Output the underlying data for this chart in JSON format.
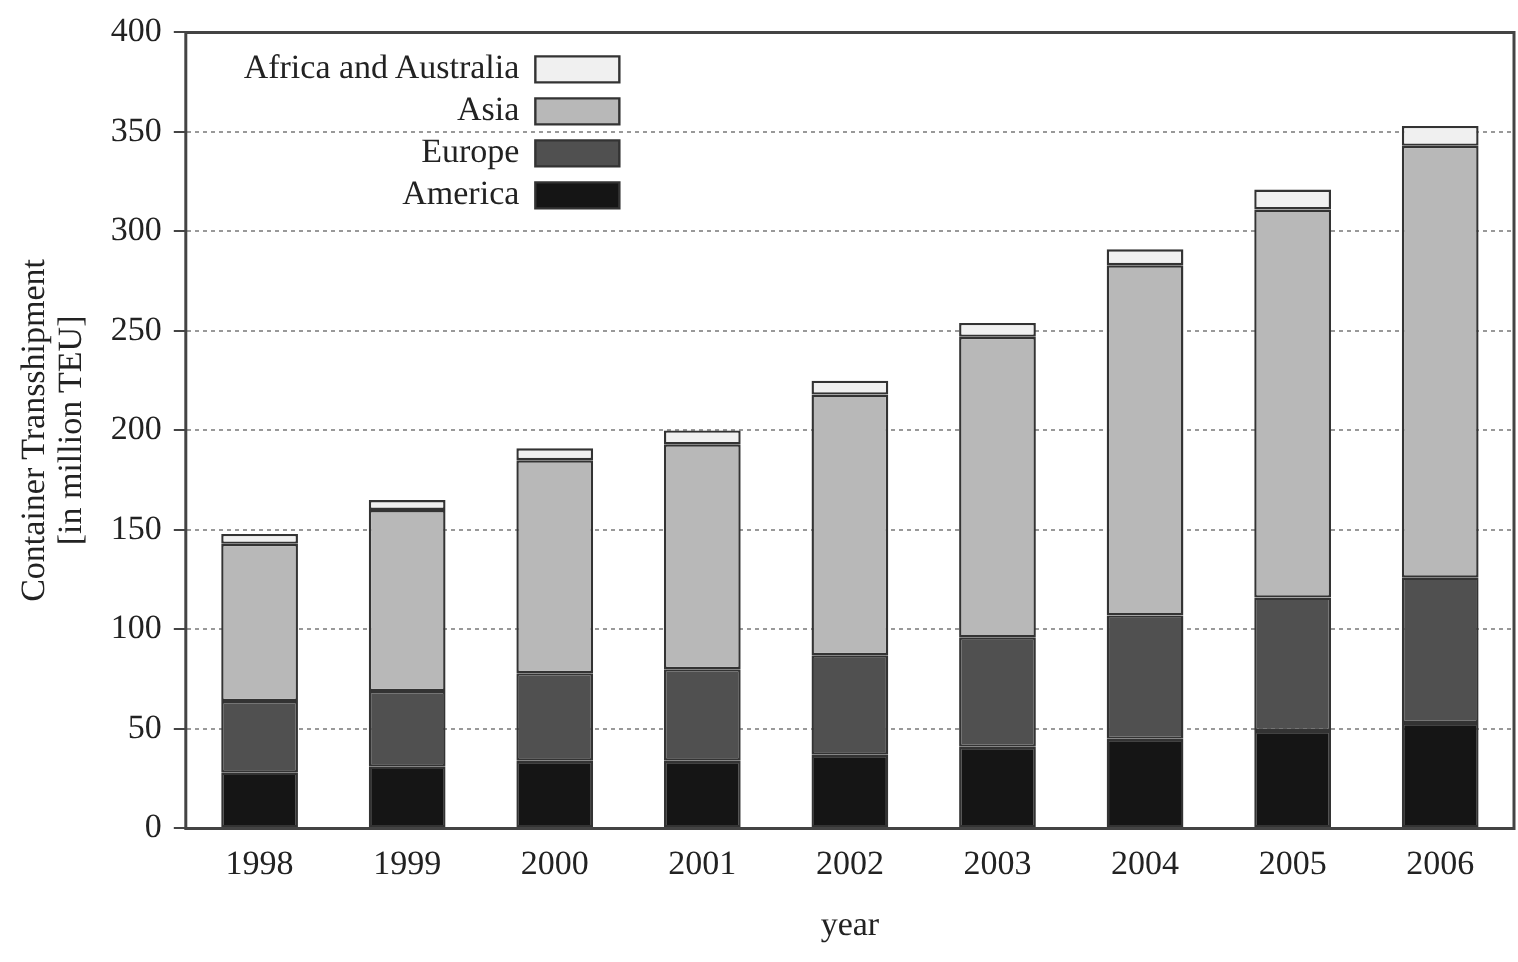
{
  "chart_data": {
    "type": "bar",
    "stacked": true,
    "xlabel": "year",
    "ylabel": "Container Transshipment\n[in million TEU]",
    "categories": [
      "1998",
      "1999",
      "2000",
      "2001",
      "2002",
      "2003",
      "2004",
      "2005",
      "2006"
    ],
    "series": [
      {
        "name": "America",
        "color": "#151515",
        "values": [
          28,
          31,
          34,
          34,
          37,
          41,
          45,
          49,
          53
        ]
      },
      {
        "name": "Europe",
        "color": "#505050",
        "values": [
          36,
          38,
          44,
          46,
          50,
          55,
          62,
          67,
          73
        ]
      },
      {
        "name": "Asia",
        "color": "#b8b8b8",
        "values": [
          79,
          91,
          107,
          113,
          131,
          151,
          176,
          195,
          217
        ]
      },
      {
        "name": "Africa and Australia",
        "color": "#f0f0f0",
        "values": [
          5,
          5,
          6,
          7,
          7,
          7,
          8,
          10,
          10
        ]
      }
    ],
    "ylim": [
      0,
      400
    ],
    "yticks": [
      0,
      50,
      100,
      150,
      200,
      250,
      300,
      350,
      400
    ],
    "grid": "y",
    "legend": "top left"
  }
}
